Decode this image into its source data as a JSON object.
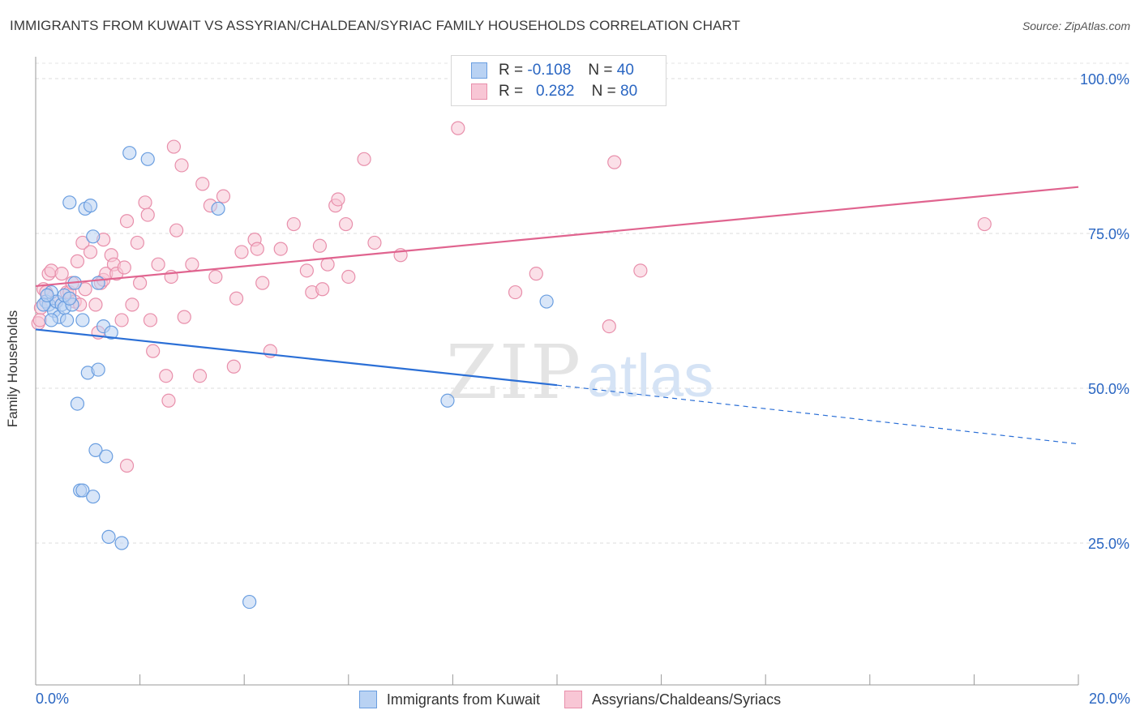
{
  "title": "IMMIGRANTS FROM KUWAIT VS ASSYRIAN/CHALDEAN/SYRIAC FAMILY HOUSEHOLDS CORRELATION CHART",
  "source": "Source: ZipAtlas.com",
  "watermark": {
    "zip": "ZIP",
    "atlas": "atlas"
  },
  "legend": {
    "r_label": "R =",
    "n_label": "N =",
    "rows": [
      {
        "r": "-0.108",
        "n": "40"
      },
      {
        "r": "0.282",
        "n": "80"
      }
    ]
  },
  "chart_data": {
    "type": "scatter",
    "title": "IMMIGRANTS FROM KUWAIT VS ASSYRIAN/CHALDEAN/SYRIAC FAMILY HOUSEHOLDS CORRELATION CHART",
    "xlabel": "",
    "ylabel": "Family Households",
    "xlim": [
      0,
      20
    ],
    "ylim": [
      0,
      105
    ],
    "x_tick_labels": [
      "0.0%",
      "20.0%"
    ],
    "y_ticks": [
      25,
      50,
      75,
      100
    ],
    "y_tick_labels": [
      "25.0%",
      "50.0%",
      "75.0%",
      "100.0%"
    ],
    "grid": true,
    "legend_position": "bottom",
    "series": [
      {
        "name": "Immigrants from Kuwait",
        "color": "#6a9ee0",
        "fill": "#b9d2f3",
        "trend": {
          "x0": 0,
          "y0": 59.5,
          "x1": 10,
          "y1": 50.5,
          "dashed_to_x": 20,
          "dashed_to_y": 41
        },
        "points": [
          [
            0.2,
            64
          ],
          [
            0.25,
            63.5
          ],
          [
            0.3,
            65.5
          ],
          [
            0.35,
            62.5
          ],
          [
            0.4,
            64
          ],
          [
            0.45,
            61.5
          ],
          [
            0.5,
            63.5
          ],
          [
            0.55,
            63
          ],
          [
            0.6,
            61
          ],
          [
            0.65,
            80
          ],
          [
            0.7,
            63.5
          ],
          [
            0.75,
            67
          ],
          [
            0.8,
            47.5
          ],
          [
            0.85,
            33.5
          ],
          [
            0.9,
            33.5
          ],
          [
            0.9,
            61
          ],
          [
            0.95,
            79
          ],
          [
            1.0,
            52.5
          ],
          [
            1.05,
            79.5
          ],
          [
            1.1,
            32.5
          ],
          [
            1.1,
            74.5
          ],
          [
            1.15,
            40
          ],
          [
            1.2,
            53
          ],
          [
            1.2,
            67
          ],
          [
            1.3,
            60
          ],
          [
            1.35,
            39
          ],
          [
            1.4,
            26
          ],
          [
            1.45,
            59
          ],
          [
            1.65,
            25
          ],
          [
            1.8,
            88
          ],
          [
            2.15,
            87
          ],
          [
            3.5,
            79
          ],
          [
            4.1,
            15.5
          ],
          [
            7.9,
            48
          ],
          [
            9.8,
            64
          ],
          [
            0.15,
            63.5
          ],
          [
            0.22,
            65
          ],
          [
            0.3,
            61
          ],
          [
            0.55,
            65
          ],
          [
            0.65,
            64.5
          ]
        ]
      },
      {
        "name": "Assyrians/Chaldeans/Syriacs",
        "color": "#e88fab",
        "fill": "#f8c6d5",
        "trend": {
          "x0": 0,
          "y0": 66.5,
          "x1": 20,
          "y1": 82.5
        },
        "points": [
          [
            0.05,
            60.5
          ],
          [
            0.1,
            63
          ],
          [
            0.15,
            66
          ],
          [
            0.2,
            65.5
          ],
          [
            0.25,
            68.5
          ],
          [
            0.3,
            69
          ],
          [
            0.4,
            64
          ],
          [
            0.5,
            68.5
          ],
          [
            0.6,
            65.5
          ],
          [
            0.65,
            65.5
          ],
          [
            0.7,
            67
          ],
          [
            0.75,
            64
          ],
          [
            0.8,
            70.5
          ],
          [
            0.85,
            63.5
          ],
          [
            0.9,
            73.5
          ],
          [
            0.95,
            66
          ],
          [
            1.05,
            72
          ],
          [
            1.15,
            63.5
          ],
          [
            1.2,
            59
          ],
          [
            1.25,
            67
          ],
          [
            1.3,
            67.5
          ],
          [
            1.3,
            74
          ],
          [
            1.35,
            68.5
          ],
          [
            1.45,
            71.5
          ],
          [
            1.5,
            70
          ],
          [
            1.55,
            68.5
          ],
          [
            1.65,
            61
          ],
          [
            1.7,
            69.5
          ],
          [
            1.75,
            37.5
          ],
          [
            1.75,
            77
          ],
          [
            1.85,
            63.5
          ],
          [
            1.95,
            73.5
          ],
          [
            2.0,
            67
          ],
          [
            2.1,
            80
          ],
          [
            2.15,
            78
          ],
          [
            2.2,
            61
          ],
          [
            2.25,
            56
          ],
          [
            2.35,
            70
          ],
          [
            2.5,
            52
          ],
          [
            2.55,
            48
          ],
          [
            2.6,
            68
          ],
          [
            2.65,
            89
          ],
          [
            2.7,
            75.5
          ],
          [
            2.8,
            86
          ],
          [
            2.85,
            61.5
          ],
          [
            3.0,
            70
          ],
          [
            3.15,
            52
          ],
          [
            3.2,
            83
          ],
          [
            3.35,
            79.5
          ],
          [
            3.45,
            68
          ],
          [
            3.6,
            81
          ],
          [
            3.8,
            53.5
          ],
          [
            3.85,
            64.5
          ],
          [
            3.95,
            72
          ],
          [
            4.2,
            74
          ],
          [
            4.25,
            72.5
          ],
          [
            4.35,
            67
          ],
          [
            4.5,
            56
          ],
          [
            4.7,
            72.5
          ],
          [
            4.95,
            76.5
          ],
          [
            5.2,
            69
          ],
          [
            5.3,
            65.5
          ],
          [
            5.45,
            73
          ],
          [
            5.5,
            66
          ],
          [
            5.6,
            70
          ],
          [
            5.75,
            79.5
          ],
          [
            5.8,
            80.5
          ],
          [
            5.95,
            76.5
          ],
          [
            6.0,
            68
          ],
          [
            6.3,
            87
          ],
          [
            6.5,
            73.5
          ],
          [
            7.0,
            71.5
          ],
          [
            8.1,
            92
          ],
          [
            9.2,
            65.5
          ],
          [
            9.6,
            68.5
          ],
          [
            11.0,
            60
          ],
          [
            11.1,
            86.5
          ],
          [
            11.6,
            69
          ],
          [
            18.2,
            76.5
          ],
          [
            0.08,
            61
          ]
        ]
      }
    ]
  },
  "bottom_legend": [
    "Immigrants from Kuwait",
    "Assyrians/Chaldeans/Syriacs"
  ],
  "x_labels": {
    "left": "0.0%",
    "right": "20.0%"
  }
}
